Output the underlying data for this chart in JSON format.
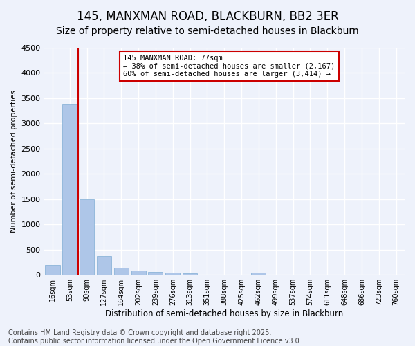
{
  "title": "145, MANXMAN ROAD, BLACKBURN, BB2 3ER",
  "subtitle": "Size of property relative to semi-detached houses in Blackburn",
  "xlabel": "Distribution of semi-detached houses by size in Blackburn",
  "ylabel": "Number of semi-detached properties",
  "categories": [
    "16sqm",
    "53sqm",
    "90sqm",
    "127sqm",
    "164sqm",
    "202sqm",
    "239sqm",
    "276sqm",
    "313sqm",
    "351sqm",
    "388sqm",
    "425sqm",
    "462sqm",
    "499sqm",
    "537sqm",
    "574sqm",
    "611sqm",
    "648sqm",
    "686sqm",
    "723sqm",
    "760sqm"
  ],
  "values": [
    190,
    3370,
    1500,
    370,
    140,
    80,
    55,
    45,
    30,
    0,
    0,
    0,
    40,
    0,
    0,
    0,
    0,
    0,
    0,
    0,
    0
  ],
  "bar_color": "#aec6e8",
  "bar_edge_color": "#7fadd4",
  "annotation_text": "145 MANXMAN ROAD: 77sqm\n← 38% of semi-detached houses are smaller (2,167)\n60% of semi-detached houses are larger (3,414) →",
  "annotation_box_color": "#ffffff",
  "annotation_box_edge": "#cc0000",
  "annotation_text_color": "#000000",
  "vline_color": "#cc0000",
  "ylim": [
    0,
    4500
  ],
  "yticks": [
    0,
    500,
    1000,
    1500,
    2000,
    2500,
    3000,
    3500,
    4000,
    4500
  ],
  "background_color": "#eef2fb",
  "grid_color": "#ffffff",
  "footer_line1": "Contains HM Land Registry data © Crown copyright and database right 2025.",
  "footer_line2": "Contains public sector information licensed under the Open Government Licence v3.0.",
  "title_fontsize": 12,
  "subtitle_fontsize": 10,
  "footer_fontsize": 7
}
